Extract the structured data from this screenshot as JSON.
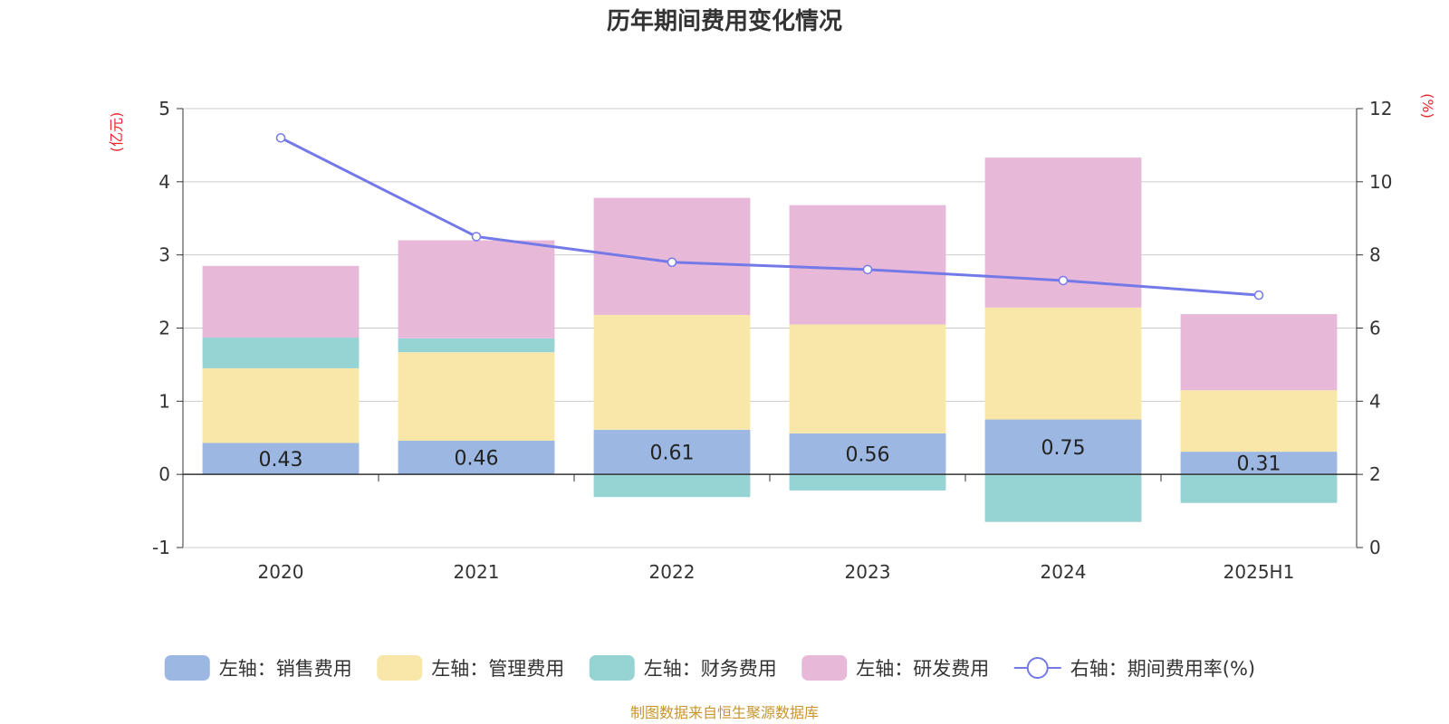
{
  "title": "历年期间费用变化情况",
  "source_note": "制图数据来自恒生聚源数据库",
  "chart_data": {
    "type": "bar",
    "stacked": true,
    "categories": [
      "2020",
      "2021",
      "2022",
      "2023",
      "2024",
      "2025H1"
    ],
    "left_axis": {
      "unit": "(亿元)",
      "min": -1,
      "max": 5,
      "ticks": [
        "-1",
        "0",
        "1",
        "2",
        "3",
        "4",
        "5"
      ]
    },
    "right_axis": {
      "unit": "(%)",
      "min": 0,
      "max": 12,
      "ticks": [
        "0",
        "2",
        "4",
        "6",
        "8",
        "10",
        "12"
      ]
    },
    "series": [
      {
        "name": "左轴：销售费用",
        "type": "bar",
        "axis": "left",
        "color": "#9bb7e2",
        "values": [
          0.43,
          0.46,
          0.61,
          0.56,
          0.75,
          0.31
        ],
        "labels": [
          "0.43",
          "0.46",
          "0.61",
          "0.56",
          "0.75",
          "0.31"
        ]
      },
      {
        "name": "左轴：管理费用",
        "type": "bar",
        "axis": "left",
        "color": "#f8e7a8",
        "values": [
          1.02,
          1.21,
          1.57,
          1.49,
          1.53,
          0.84
        ]
      },
      {
        "name": "左轴：财务费用",
        "type": "bar",
        "axis": "left",
        "color": "#96d4d4",
        "values": [
          0.42,
          0.19,
          -0.31,
          -0.22,
          -0.65,
          -0.39
        ]
      },
      {
        "name": "左轴：研发费用",
        "type": "bar",
        "axis": "left",
        "color": "#e8b8d9",
        "values": [
          0.98,
          1.34,
          1.6,
          1.63,
          2.05,
          1.04
        ]
      },
      {
        "name": "右轴：期间费用率(%)",
        "type": "line",
        "axis": "right",
        "color": "#7479e8",
        "values": [
          11.2,
          8.5,
          7.8,
          7.6,
          7.3,
          6.9
        ]
      }
    ],
    "grid": true,
    "legend_position": "bottom"
  }
}
